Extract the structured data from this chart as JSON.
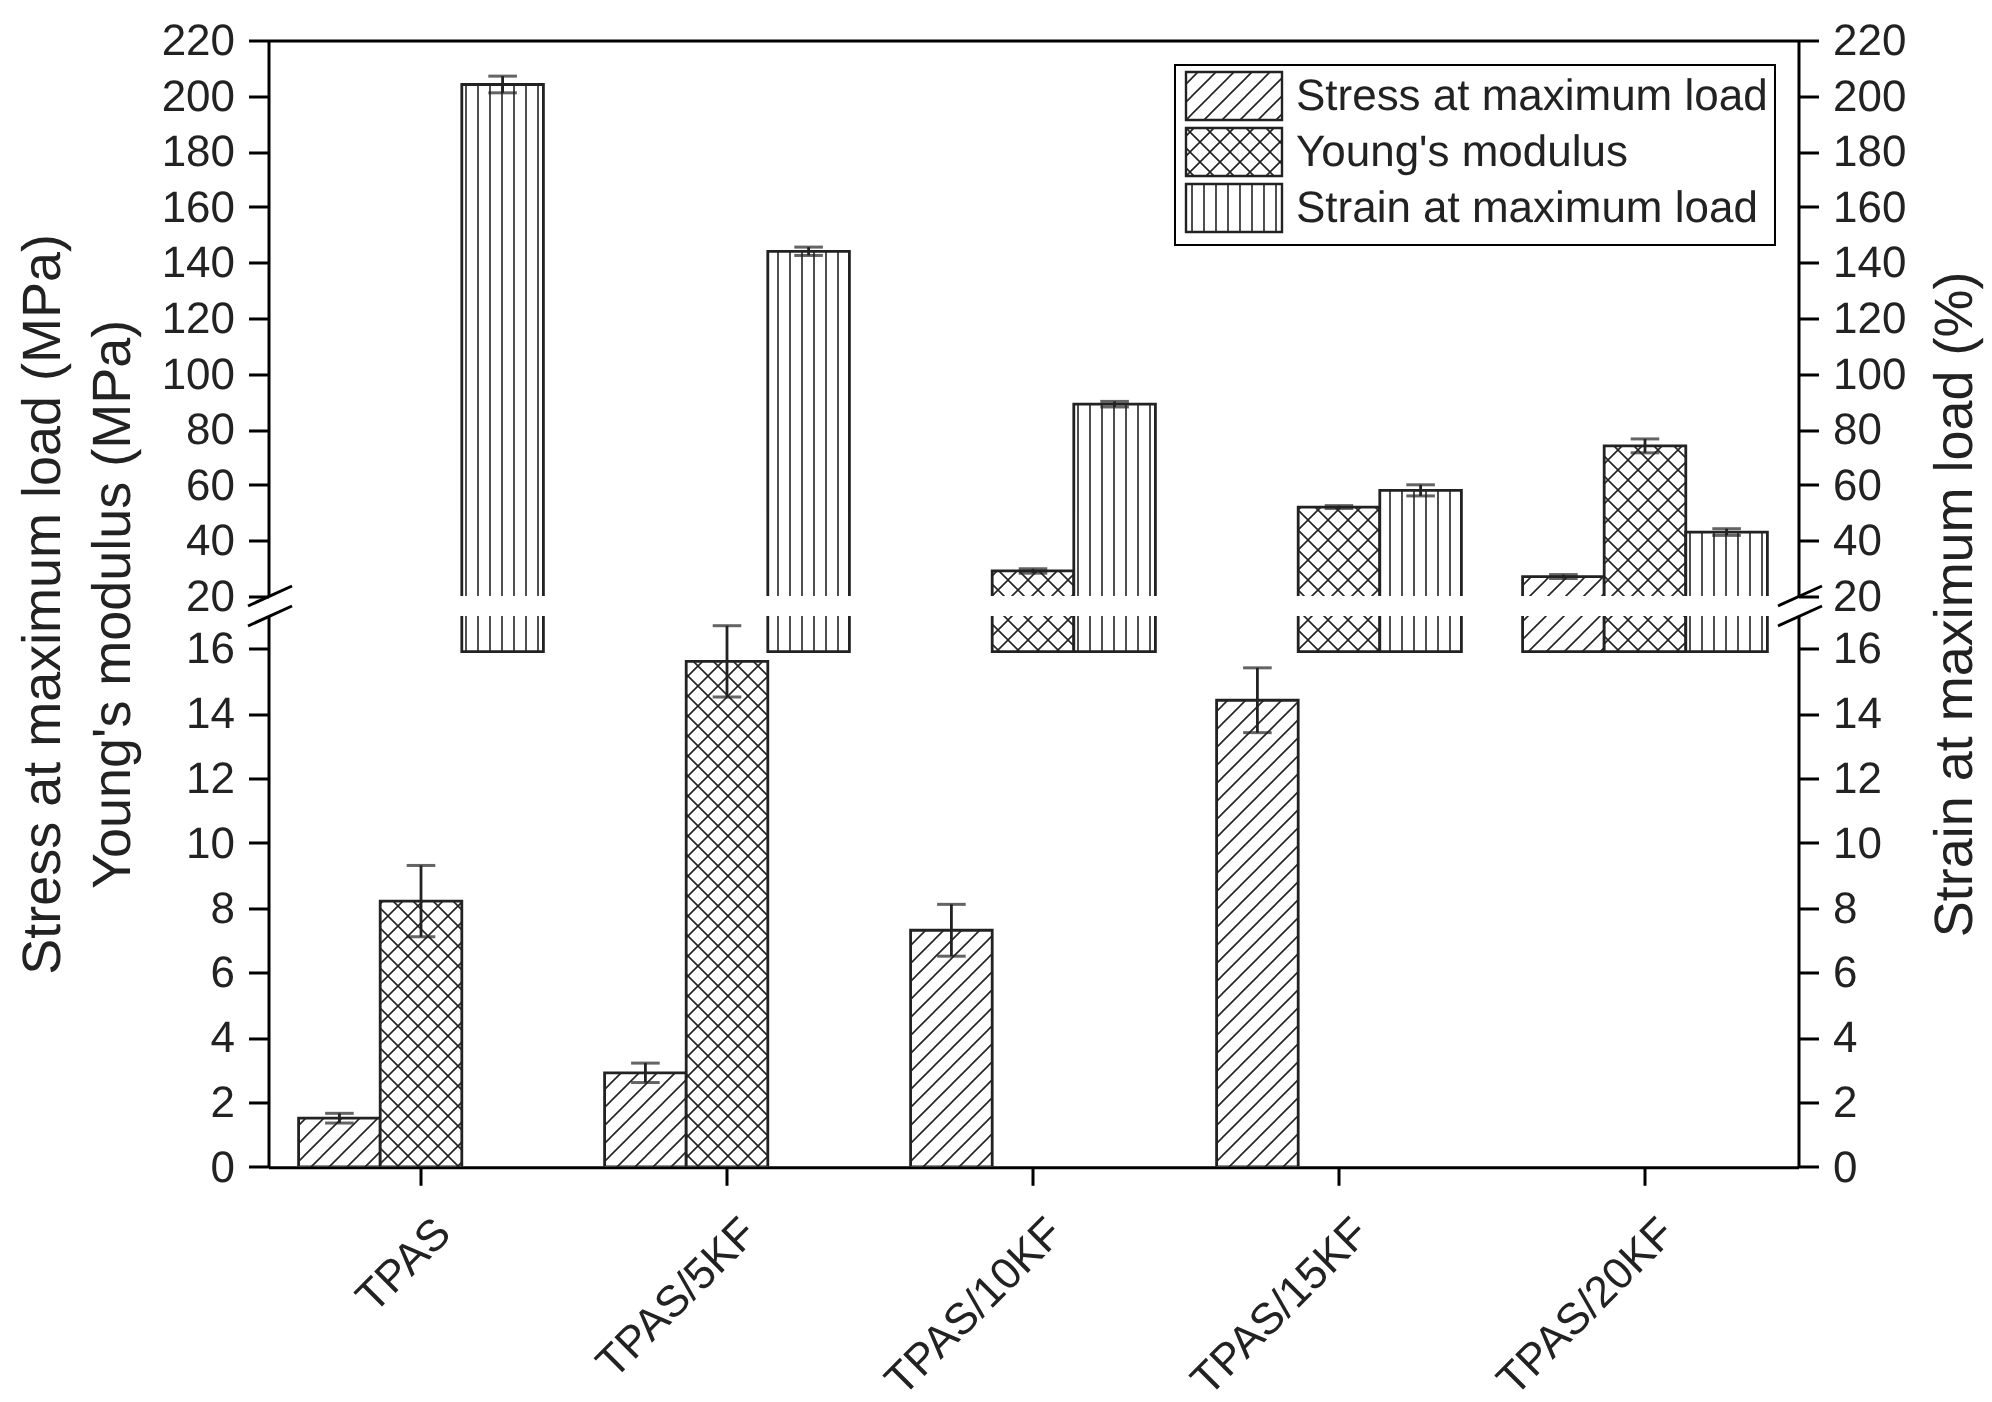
{
  "chart_data": [
    {
      "type": "bar",
      "ylabel": "Stress at maximum load (MPa)\nYoung's modulus (MPa)",
      "y2label": "Strain at maximum load (%)",
      "categories": [
        null,
        null,
        null,
        null,
        null
      ],
      "series": [
        {
          "name": "Stress at maximum load",
          "color": "#222222",
          "values": [
            null,
            null,
            null,
            null,
            27
          ],
          "errors": [
            null,
            null,
            null,
            null,
            0.7
          ]
        },
        {
          "name": "Young's modulus",
          "color": "#222222",
          "values": [
            null,
            null,
            29,
            52,
            74
          ],
          "errors": [
            null,
            null,
            0.8,
            0.5,
            2.5
          ]
        },
        {
          "name": "Strain at maximum load",
          "color": "#222222",
          "values": [
            204,
            144,
            89,
            58,
            43
          ],
          "errors": [
            3,
            1.5,
            1,
            2,
            1.2
          ],
          "axis": "y2"
        }
      ],
      "ylim": [
        20,
        220
      ],
      "yticks": [
        20,
        40,
        60,
        80,
        100,
        120,
        140,
        160,
        180,
        200,
        220
      ],
      "y2lim": [
        20,
        220
      ],
      "y2ticks": [
        20,
        40,
        60,
        80,
        100,
        120,
        140,
        160,
        180,
        200,
        220
      ],
      "legend": "top right",
      "tick_labels": "y"
    },
    {
      "type": "bar",
      "categories": [
        "TPAS",
        "TPAS/5KF",
        "TPAS/10KF",
        "TPAS/15KF",
        "TPAS/20KF"
      ],
      "series": [
        {
          "color": "#222222",
          "values": [
            1.5,
            2.9,
            7.3,
            14.4,
            null
          ],
          "errors": [
            0.15,
            0.3,
            0.8,
            1.0,
            null
          ]
        },
        {
          "color": "#222222",
          "values": [
            8.2,
            15.6,
            null,
            null,
            null
          ],
          "errors": [
            1.1,
            1.1,
            null,
            null,
            null
          ]
        },
        {
          "color": "#222222",
          "values": [
            null,
            null,
            null,
            null,
            null
          ],
          "axis": "y2"
        }
      ],
      "ylim": [
        0,
        17
      ],
      "yticks": [
        0,
        2,
        4,
        6,
        8,
        10,
        12,
        14,
        16
      ],
      "y2lim": [
        0,
        17
      ],
      "y2ticks": [
        0,
        2,
        4,
        6,
        8,
        10,
        12,
        14,
        16
      ]
    }
  ]
}
